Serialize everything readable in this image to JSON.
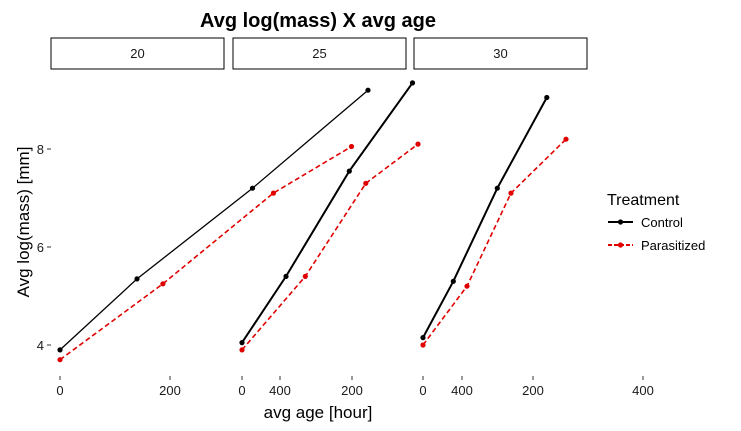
{
  "chart_data": {
    "type": "line",
    "title": "Avg log(mass) X avg age",
    "xlabel": "avg age [hour]",
    "ylabel": "Avg log(mass) [mm]",
    "xlim": [
      -10,
      560
    ],
    "ylim": [
      3.5,
      9.6
    ],
    "x_ticks": [
      0,
      200,
      400
    ],
    "y_ticks": [
      4,
      6,
      8
    ],
    "x_tick_labels": [
      "0",
      "200",
      "400"
    ],
    "y_tick_labels": [
      "4",
      "6",
      "8"
    ],
    "grid": false,
    "legend": {
      "title": "Treatment",
      "position": "right",
      "entries": [
        "Control",
        "Parasitized"
      ]
    },
    "colors": {
      "Control": "#000000",
      "Parasitized": "#e00000"
    },
    "panels": [
      {
        "label": "20",
        "series": [
          {
            "name": "Control",
            "x": [
              0,
              140,
              350,
              560
            ],
            "y": [
              3.9,
              5.35,
              7.2,
              9.2
            ]
          },
          {
            "name": "Parasitized",
            "x": [
              0,
              187,
              388,
              530
            ],
            "y": [
              3.7,
              5.25,
              7.1,
              8.05
            ]
          }
        ]
      },
      {
        "label": "25",
        "series": [
          {
            "name": "Control",
            "x": [
              0,
              80,
              195,
              310
            ],
            "y": [
              4.05,
              5.4,
              7.55,
              9.35
            ]
          },
          {
            "name": "Parasitized",
            "x": [
              0,
              115,
              225,
              320
            ],
            "y": [
              3.9,
              5.4,
              7.3,
              8.1
            ]
          }
        ]
      },
      {
        "label": "30",
        "series": [
          {
            "name": "Control",
            "x": [
              0,
              55,
              135,
              225
            ],
            "y": [
              4.15,
              5.3,
              7.2,
              9.05
            ]
          },
          {
            "name": "Parasitized",
            "x": [
              0,
              80,
              160,
              260
            ],
            "y": [
              4.0,
              5.2,
              7.1,
              8.2
            ]
          }
        ]
      }
    ]
  }
}
